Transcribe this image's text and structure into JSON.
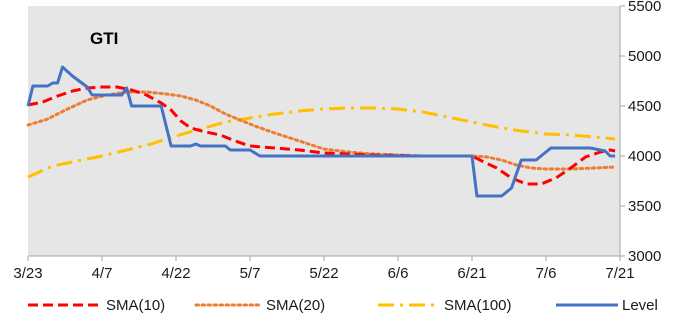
{
  "chart_data": {
    "type": "line",
    "title": "GTI",
    "xlabel": "",
    "ylabel": "",
    "x_tick_labels": [
      "3/23",
      "4/7",
      "4/22",
      "5/7",
      "5/22",
      "6/6",
      "6/21",
      "7/6",
      "7/21"
    ],
    "x_tick_days": [
      0,
      15,
      30,
      45,
      60,
      75,
      90,
      105,
      120
    ],
    "ylim": [
      3000,
      5500
    ],
    "y_ticks": [
      3000,
      3500,
      4000,
      4500,
      5000,
      5500
    ],
    "y_axis_position": "right",
    "grid": false,
    "legend": "bottom",
    "colors": {
      "plot_background": "#e6e6e6",
      "sma10": "#ff0000",
      "sma20": "#ed7d31",
      "sma100": "#ffc000",
      "level": "#4472c4"
    },
    "series": [
      {
        "name": "SMA(10)",
        "style": "dashed",
        "color": "#ff0000",
        "points": [
          [
            0,
            4510
          ],
          [
            3,
            4540
          ],
          [
            6,
            4600
          ],
          [
            9,
            4650
          ],
          [
            12,
            4680
          ],
          [
            15,
            4690
          ],
          [
            18,
            4690
          ],
          [
            21,
            4660
          ],
          [
            24,
            4610
          ],
          [
            27,
            4530
          ],
          [
            29,
            4460
          ],
          [
            31,
            4350
          ],
          [
            33,
            4280
          ],
          [
            36,
            4240
          ],
          [
            39,
            4210
          ],
          [
            42,
            4150
          ],
          [
            45,
            4100
          ],
          [
            50,
            4080
          ],
          [
            55,
            4060
          ],
          [
            60,
            4030
          ],
          [
            70,
            4010
          ],
          [
            80,
            4000
          ],
          [
            90,
            4000
          ],
          [
            92,
            3950
          ],
          [
            95,
            3880
          ],
          [
            98,
            3780
          ],
          [
            101,
            3720
          ],
          [
            104,
            3720
          ],
          [
            107,
            3780
          ],
          [
            110,
            3880
          ],
          [
            113,
            3990
          ],
          [
            116,
            4040
          ],
          [
            118,
            4060
          ],
          [
            119,
            4050
          ]
        ]
      },
      {
        "name": "SMA(20)",
        "style": "dotted",
        "color": "#ed7d31",
        "points": [
          [
            0,
            4310
          ],
          [
            4,
            4370
          ],
          [
            8,
            4470
          ],
          [
            12,
            4560
          ],
          [
            16,
            4610
          ],
          [
            20,
            4640
          ],
          [
            24,
            4640
          ],
          [
            28,
            4620
          ],
          [
            31,
            4600
          ],
          [
            34,
            4560
          ],
          [
            37,
            4500
          ],
          [
            40,
            4420
          ],
          [
            43,
            4360
          ],
          [
            46,
            4300
          ],
          [
            50,
            4230
          ],
          [
            55,
            4150
          ],
          [
            60,
            4070
          ],
          [
            65,
            4040
          ],
          [
            70,
            4020
          ],
          [
            80,
            4000
          ],
          [
            90,
            4000
          ],
          [
            93,
            3990
          ],
          [
            96,
            3960
          ],
          [
            99,
            3910
          ],
          [
            102,
            3880
          ],
          [
            105,
            3870
          ],
          [
            110,
            3870
          ],
          [
            115,
            3880
          ],
          [
            119,
            3890
          ]
        ]
      },
      {
        "name": "SMA(100)",
        "style": "dash-dot",
        "color": "#ffc000",
        "points": [
          [
            0,
            3790
          ],
          [
            5,
            3900
          ],
          [
            10,
            3950
          ],
          [
            15,
            4000
          ],
          [
            20,
            4060
          ],
          [
            25,
            4120
          ],
          [
            28,
            4170
          ],
          [
            30,
            4200
          ],
          [
            35,
            4270
          ],
          [
            40,
            4340
          ],
          [
            45,
            4380
          ],
          [
            50,
            4420
          ],
          [
            55,
            4450
          ],
          [
            60,
            4470
          ],
          [
            65,
            4480
          ],
          [
            70,
            4480
          ],
          [
            75,
            4470
          ],
          [
            80,
            4440
          ],
          [
            85,
            4390
          ],
          [
            90,
            4340
          ],
          [
            95,
            4290
          ],
          [
            100,
            4250
          ],
          [
            105,
            4220
          ],
          [
            110,
            4210
          ],
          [
            115,
            4190
          ],
          [
            119,
            4170
          ]
        ]
      },
      {
        "name": "Level",
        "style": "solid",
        "color": "#4472c4",
        "points": [
          [
            0,
            4500
          ],
          [
            1,
            4700
          ],
          [
            4,
            4700
          ],
          [
            5,
            4730
          ],
          [
            6,
            4730
          ],
          [
            7,
            4890
          ],
          [
            9,
            4800
          ],
          [
            12,
            4690
          ],
          [
            13,
            4610
          ],
          [
            14,
            4610
          ],
          [
            19,
            4610
          ],
          [
            20,
            4680
          ],
          [
            21,
            4500
          ],
          [
            27,
            4500
          ],
          [
            29,
            4100
          ],
          [
            33,
            4100
          ],
          [
            34,
            4120
          ],
          [
            35,
            4100
          ],
          [
            40,
            4100
          ],
          [
            41,
            4060
          ],
          [
            45,
            4060
          ],
          [
            47,
            4000
          ],
          [
            90,
            4000
          ],
          [
            91,
            3600
          ],
          [
            96,
            3600
          ],
          [
            98,
            3680
          ],
          [
            100,
            3960
          ],
          [
            103,
            3960
          ],
          [
            106,
            4080
          ],
          [
            114,
            4080
          ],
          [
            117,
            4050
          ],
          [
            118,
            4000
          ],
          [
            119,
            4000
          ]
        ]
      }
    ]
  }
}
